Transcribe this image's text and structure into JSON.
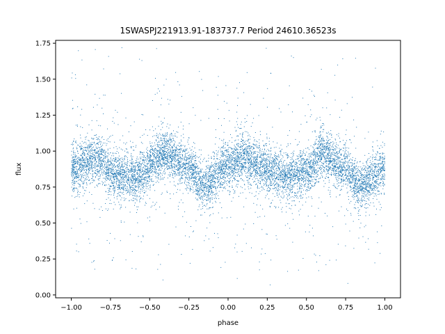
{
  "chart_data": {
    "type": "scatter",
    "title": "1SWASPJ221913.91-183737.7 Period 24610.36523s",
    "xlabel": "phase",
    "ylabel": "flux",
    "xlim": [
      -1.1,
      1.1
    ],
    "ylim": [
      -0.02,
      1.77
    ],
    "xticks": [
      -1.0,
      -0.75,
      -0.5,
      -0.25,
      0.0,
      0.25,
      0.5,
      0.75,
      1.0
    ],
    "xtick_labels": [
      "−1.00",
      "−0.75",
      "−0.50",
      "−0.25",
      "0.00",
      "0.25",
      "0.50",
      "0.75",
      "1.00"
    ],
    "yticks": [
      0.0,
      0.25,
      0.5,
      0.75,
      1.0,
      1.25,
      1.5,
      1.75
    ],
    "ytick_labels": [
      "0.00",
      "0.25",
      "0.50",
      "0.75",
      "1.00",
      "1.25",
      "1.50",
      "1.75"
    ],
    "grid": false,
    "point_color": "#1f77b4",
    "series": [
      {
        "phase_range": [
          -1.0,
          1.0
        ],
        "mean_flux_profile": {
          "phase": [
            -1.0,
            -0.85,
            -0.7,
            -0.6,
            -0.4,
            -0.25,
            -0.15,
            0.0,
            0.1,
            0.25,
            0.4,
            0.5,
            0.6,
            0.75,
            0.85,
            1.0
          ],
          "flux": [
            0.87,
            0.95,
            0.83,
            0.82,
            0.98,
            0.88,
            0.76,
            0.9,
            0.96,
            0.87,
            0.82,
            0.86,
            0.98,
            0.88,
            0.76,
            0.87
          ]
        },
        "flux_spread": 0.08,
        "outlier_range": [
          0.05,
          1.72
        ]
      }
    ]
  }
}
